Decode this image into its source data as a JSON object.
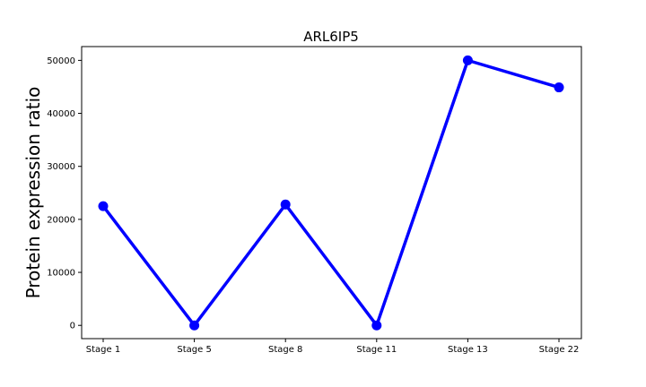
{
  "chart_data": {
    "type": "line",
    "title": "ARL6IP5",
    "xlabel": "",
    "ylabel": "Protein expression ratio",
    "categories": [
      "Stage 1",
      "Stage 5",
      "Stage 8",
      "Stage 11",
      "Stage 13",
      "Stage 22"
    ],
    "series": [
      {
        "values": [
          22500,
          0,
          22800,
          0,
          50000,
          44900
        ],
        "color": "#0000ff"
      }
    ],
    "yticks": [
      0,
      10000,
      20000,
      30000,
      40000,
      50000
    ],
    "ylim": [
      -2500,
      52600
    ],
    "grid": false,
    "legend": "none",
    "markers": "circle"
  }
}
